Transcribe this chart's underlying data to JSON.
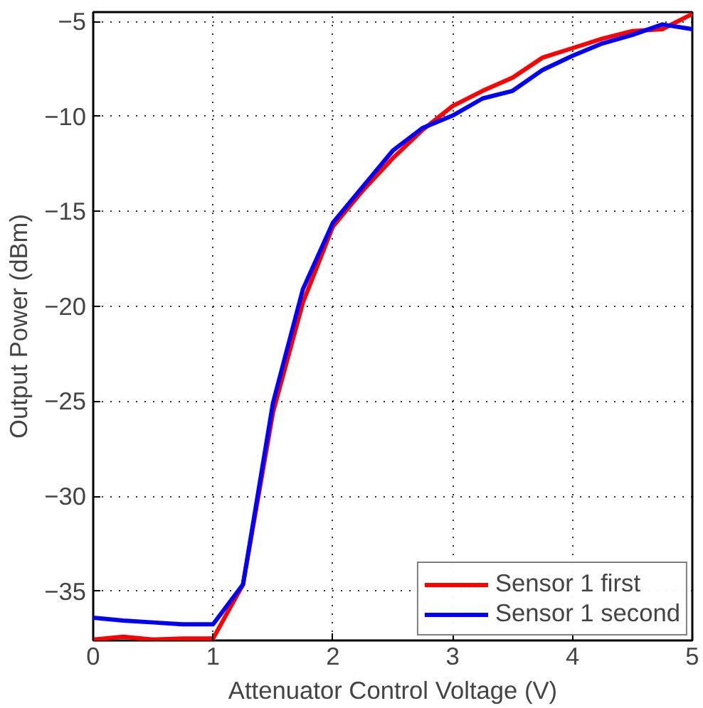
{
  "chart_data": {
    "type": "line",
    "xlabel": "Attenuator Control Voltage (V)",
    "ylabel": "Output Power (dBm)",
    "x": [
      0,
      0.25,
      0.5,
      0.75,
      1,
      1.25,
      1.5,
      1.75,
      2,
      2.25,
      2.5,
      2.75,
      3,
      3.25,
      3.5,
      3.75,
      4,
      4.25,
      4.5,
      4.75,
      5
    ],
    "series": [
      {
        "name": "Sensor 1 first",
        "color": "#ff0000",
        "values": [
          -37.55,
          -37.4,
          -37.55,
          -37.5,
          -37.5,
          -34.65,
          -25.6,
          -19.8,
          -15.8,
          -13.9,
          -12.2,
          -10.7,
          -9.45,
          -8.65,
          -7.95,
          -6.9,
          -6.4,
          -5.9,
          -5.5,
          -5.4,
          -4.6
        ]
      },
      {
        "name": "Sensor 1 second",
        "color": "#0000ff",
        "values": [
          -36.4,
          -36.55,
          -36.65,
          -36.75,
          -36.75,
          -34.65,
          -25.1,
          -19.1,
          -15.6,
          -13.7,
          -11.8,
          -10.6,
          -9.95,
          -9.05,
          -8.65,
          -7.55,
          -6.8,
          -6.15,
          -5.7,
          -5.15,
          -5.4
        ]
      }
    ],
    "xlim": [
      0,
      5
    ],
    "ylim": [
      -37.6,
      -4.5
    ],
    "xticks": [
      0,
      1,
      2,
      3,
      4,
      5
    ],
    "yticks": [
      -35,
      -30,
      -25,
      -20,
      -15,
      -10,
      -5
    ],
    "grid": true,
    "legend": "bottom right",
    "line_style": "solid"
  }
}
